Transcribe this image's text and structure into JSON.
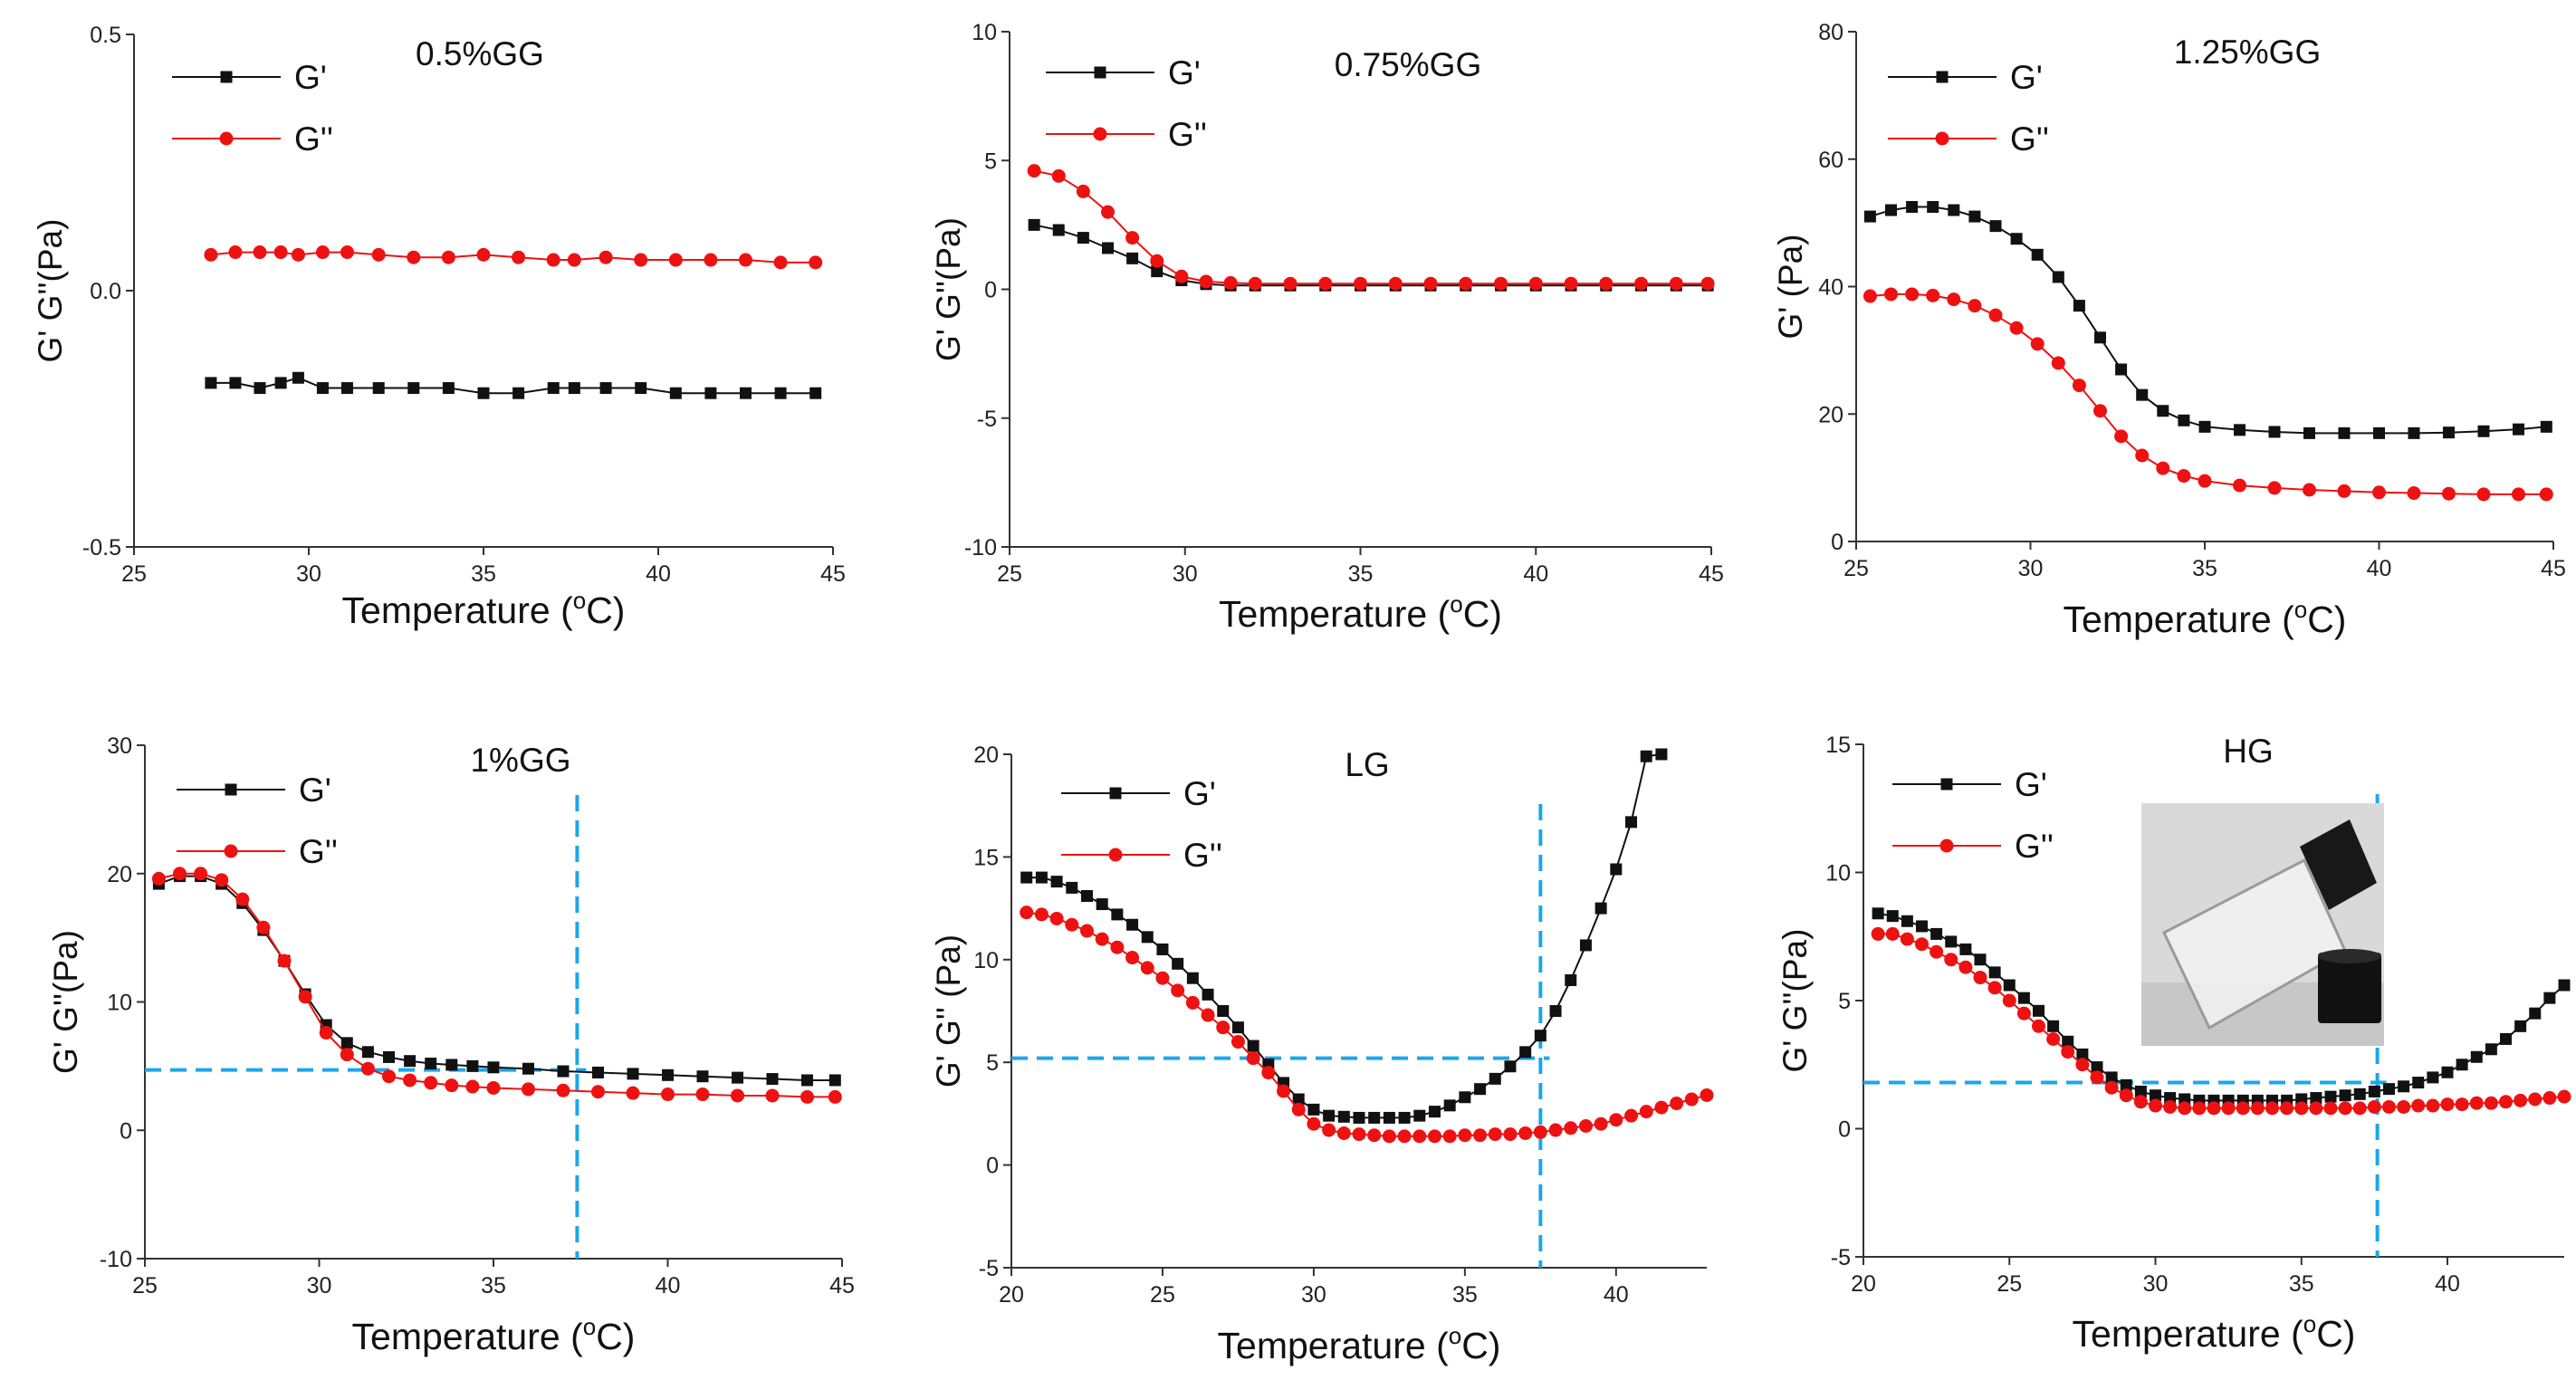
{
  "figure": {
    "x_axis_title": "Temperature",
    "x_axis_unit": "(°C)"
  },
  "chart_data": [
    {
      "type": "line",
      "title": "0.5%GG",
      "xlabel": "Temperature (°C)",
      "ylabel": "G' G''(Pa)",
      "xlim": [
        25,
        45
      ],
      "ylim": [
        -0.5,
        0.5
      ],
      "xticks": [
        25,
        30,
        35,
        40,
        45
      ],
      "xtick_labels": [
        "25",
        "30",
        "35",
        "40",
        "45"
      ],
      "yticks": [
        -0.5,
        0,
        0.5
      ],
      "ytick_labels": [
        "-0.5",
        "0.0",
        "0.5"
      ],
      "legend": [
        "G'",
        "G''"
      ],
      "series": [
        {
          "name": "G'",
          "color": "#111111",
          "marker": "square",
          "x": [
            27.2,
            27.9,
            28.6,
            29.2,
            29.7,
            30.4,
            31.1,
            32.0,
            33.0,
            34.0,
            35.0,
            36.0,
            37.0,
            37.6,
            38.5,
            39.5,
            40.5,
            41.5,
            42.5,
            43.5,
            44.5
          ],
          "y": [
            -0.18,
            -0.18,
            -0.19,
            -0.18,
            -0.17,
            -0.19,
            -0.19,
            -0.19,
            -0.19,
            -0.19,
            -0.2,
            -0.2,
            -0.19,
            -0.19,
            -0.19,
            -0.19,
            -0.2,
            -0.2,
            -0.2,
            -0.2,
            -0.2
          ]
        },
        {
          "name": "G''",
          "color": "#ee1111",
          "marker": "circle",
          "x": [
            27.2,
            27.9,
            28.6,
            29.2,
            29.7,
            30.4,
            31.1,
            32.0,
            33.0,
            34.0,
            35.0,
            36.0,
            37.0,
            37.6,
            38.5,
            39.5,
            40.5,
            41.5,
            42.5,
            43.5,
            44.5
          ],
          "y": [
            0.07,
            0.075,
            0.075,
            0.075,
            0.07,
            0.075,
            0.075,
            0.07,
            0.065,
            0.065,
            0.07,
            0.065,
            0.06,
            0.06,
            0.065,
            0.06,
            0.06,
            0.06,
            0.06,
            0.055,
            0.055
          ]
        }
      ]
    },
    {
      "type": "line",
      "title": "0.75%GG",
      "xlabel": "Temperature (°C)",
      "ylabel": "G' G''(Pa)",
      "xlim": [
        25,
        45
      ],
      "ylim": [
        -10,
        10
      ],
      "xticks": [
        25,
        30,
        35,
        40,
        45
      ],
      "xtick_labels": [
        "25",
        "30",
        "35",
        "40",
        "45"
      ],
      "yticks": [
        -10,
        -5,
        0,
        5,
        10
      ],
      "ytick_labels": [
        "-10",
        "-5",
        "0",
        "5",
        "10"
      ],
      "legend": [
        "G'",
        "G''"
      ],
      "series": [
        {
          "name": "G'",
          "color": "#111111",
          "marker": "square",
          "x": [
            25.7,
            26.4,
            27.1,
            27.8,
            28.5,
            29.2,
            29.9,
            30.6,
            31.3,
            32.0,
            33.0,
            34.0,
            35.0,
            36.0,
            37.0,
            38.0,
            39.0,
            40.0,
            41.0,
            42.0,
            43.0,
            44.0,
            44.9
          ],
          "y": [
            2.5,
            2.3,
            2.0,
            1.6,
            1.2,
            0.7,
            0.35,
            0.2,
            0.15,
            0.15,
            0.15,
            0.15,
            0.15,
            0.15,
            0.15,
            0.15,
            0.15,
            0.15,
            0.15,
            0.15,
            0.15,
            0.15,
            0.15
          ]
        },
        {
          "name": "G''",
          "color": "#ee1111",
          "marker": "circle",
          "x": [
            25.7,
            26.4,
            27.1,
            27.8,
            28.5,
            29.2,
            29.9,
            30.6,
            31.3,
            32.0,
            33.0,
            34.0,
            35.0,
            36.0,
            37.0,
            38.0,
            39.0,
            40.0,
            41.0,
            42.0,
            43.0,
            44.0,
            44.9
          ],
          "y": [
            4.6,
            4.4,
            3.8,
            3.0,
            2.0,
            1.1,
            0.5,
            0.3,
            0.25,
            0.22,
            0.22,
            0.22,
            0.22,
            0.22,
            0.22,
            0.22,
            0.22,
            0.22,
            0.22,
            0.22,
            0.22,
            0.22,
            0.22
          ]
        }
      ]
    },
    {
      "type": "line",
      "title": "1.25%GG",
      "xlabel": "Temperature (°C)",
      "ylabel": "G' (Pa)",
      "xlim": [
        25,
        45
      ],
      "ylim": [
        0,
        80
      ],
      "xticks": [
        25,
        30,
        35,
        40,
        45
      ],
      "xtick_labels": [
        "25",
        "30",
        "35",
        "40",
        "45"
      ],
      "yticks": [
        0,
        20,
        40,
        60,
        80
      ],
      "ytick_labels": [
        "0",
        "20",
        "40",
        "60",
        "80"
      ],
      "legend": [
        "G'",
        "G''"
      ],
      "series": [
        {
          "name": "G'",
          "color": "#111111",
          "marker": "square",
          "x": [
            25.4,
            26.0,
            26.6,
            27.2,
            27.8,
            28.4,
            29.0,
            29.6,
            30.2,
            30.8,
            31.4,
            32.0,
            32.6,
            33.2,
            33.8,
            34.4,
            35.0,
            36.0,
            37.0,
            38.0,
            39.0,
            40.0,
            41.0,
            42.0,
            43.0,
            44.0,
            44.8
          ],
          "y": [
            51,
            52,
            52.5,
            52.5,
            52,
            51,
            49.5,
            47.5,
            45,
            41.5,
            37,
            32,
            27,
            23,
            20.5,
            19,
            18,
            17.5,
            17.2,
            17,
            17,
            17,
            17,
            17.1,
            17.3,
            17.6,
            18
          ]
        },
        {
          "name": "G''",
          "color": "#ee1111",
          "marker": "circle",
          "x": [
            25.4,
            26.0,
            26.6,
            27.2,
            27.8,
            28.4,
            29.0,
            29.6,
            30.2,
            30.8,
            31.4,
            32.0,
            32.6,
            33.2,
            33.8,
            34.4,
            35.0,
            36.0,
            37.0,
            38.0,
            39.0,
            40.0,
            41.0,
            42.0,
            43.0,
            44.0,
            44.8
          ],
          "y": [
            38.5,
            38.8,
            38.8,
            38.6,
            38,
            37,
            35.5,
            33.5,
            31,
            28,
            24.5,
            20.5,
            16.5,
            13.5,
            11.5,
            10.3,
            9.5,
            8.8,
            8.4,
            8.1,
            7.9,
            7.7,
            7.6,
            7.5,
            7.4,
            7.4,
            7.4
          ]
        }
      ]
    },
    {
      "type": "line",
      "title": "1%GG",
      "xlabel": "Temperature (°C)",
      "ylabel": "G' G''(Pa)",
      "xlim": [
        25,
        45
      ],
      "ylim": [
        -10,
        30
      ],
      "xticks": [
        25,
        30,
        35,
        40,
        45
      ],
      "xtick_labels": [
        "25",
        "30",
        "35",
        "40",
        "45"
      ],
      "yticks": [
        -10,
        0,
        10,
        20,
        30
      ],
      "ytick_labels": [
        "-10",
        "0",
        "10",
        "20",
        "30"
      ],
      "legend": [
        "G'",
        "G''"
      ],
      "guide": {
        "x": 37.4,
        "y": 4.7
      },
      "series": [
        {
          "name": "G'",
          "color": "#111111",
          "marker": "square",
          "x": [
            25.4,
            26.0,
            26.6,
            27.2,
            27.8,
            28.4,
            29.0,
            29.6,
            30.2,
            30.8,
            31.4,
            32.0,
            32.6,
            33.2,
            33.8,
            34.4,
            35.0,
            36.0,
            37.0,
            38.0,
            39.0,
            40.0,
            41.0,
            42.0,
            43.0,
            44.0,
            44.8
          ],
          "y": [
            19.2,
            19.8,
            19.8,
            19.2,
            17.7,
            15.6,
            13.2,
            10.6,
            8.2,
            6.8,
            6.1,
            5.7,
            5.4,
            5.2,
            5.1,
            5.0,
            4.9,
            4.8,
            4.6,
            4.5,
            4.4,
            4.3,
            4.2,
            4.1,
            4.0,
            3.9,
            3.9
          ]
        },
        {
          "name": "G''",
          "color": "#ee1111",
          "marker": "circle",
          "x": [
            25.4,
            26.0,
            26.6,
            27.2,
            27.8,
            28.4,
            29.0,
            29.6,
            30.2,
            30.8,
            31.4,
            32.0,
            32.6,
            33.2,
            33.8,
            34.4,
            35.0,
            36.0,
            37.0,
            38.0,
            39.0,
            40.0,
            41.0,
            42.0,
            43.0,
            44.0,
            44.8
          ],
          "y": [
            19.6,
            20.0,
            20.0,
            19.5,
            18.0,
            15.8,
            13.2,
            10.4,
            7.6,
            5.9,
            4.8,
            4.2,
            3.9,
            3.7,
            3.5,
            3.4,
            3.3,
            3.2,
            3.1,
            3.0,
            2.9,
            2.8,
            2.8,
            2.7,
            2.7,
            2.6,
            2.6
          ]
        }
      ]
    },
    {
      "type": "line",
      "title": "LG",
      "xlabel": "Temperature (°C)",
      "ylabel": "G' G'' (Pa)",
      "xlim": [
        20,
        43
      ],
      "ylim": [
        -5,
        20
      ],
      "xticks": [
        20,
        25,
        30,
        35,
        40
      ],
      "xtick_labels": [
        "20",
        "25",
        "30",
        "35",
        "40"
      ],
      "yticks": [
        -5,
        0,
        5,
        10,
        15,
        20
      ],
      "ytick_labels": [
        "-5",
        "0",
        "5",
        "10",
        "15",
        "20"
      ],
      "legend": [
        "G'",
        "G''"
      ],
      "guide": {
        "x": 37.5,
        "y": 5.2
      },
      "series": [
        {
          "name": "G'",
          "color": "#111111",
          "marker": "square",
          "x": [
            20.5,
            21.0,
            21.5,
            22.0,
            22.5,
            23.0,
            23.5,
            24.0,
            24.5,
            25.0,
            25.5,
            26.0,
            26.5,
            27.0,
            27.5,
            28.0,
            28.5,
            29.0,
            29.5,
            30.0,
            30.5,
            31.0,
            31.5,
            32.0,
            32.5,
            33.0,
            33.5,
            34.0,
            34.5,
            35.0,
            35.5,
            36.0,
            36.5,
            37.0,
            37.5,
            38.0,
            38.5,
            39.0,
            39.5,
            40.0,
            40.5,
            41.0,
            41.5
          ],
          "y": [
            14.0,
            14.0,
            13.8,
            13.5,
            13.1,
            12.7,
            12.2,
            11.7,
            11.1,
            10.5,
            9.8,
            9.1,
            8.3,
            7.5,
            6.7,
            5.8,
            4.9,
            4.0,
            3.2,
            2.7,
            2.4,
            2.35,
            2.3,
            2.3,
            2.3,
            2.3,
            2.4,
            2.6,
            2.9,
            3.3,
            3.7,
            4.2,
            4.8,
            5.5,
            6.3,
            7.5,
            9.0,
            10.7,
            12.5,
            14.4,
            16.7,
            19.9,
            20.0
          ]
        },
        {
          "name": "G''",
          "color": "#ee1111",
          "marker": "circle",
          "x": [
            20.5,
            21.0,
            21.5,
            22.0,
            22.5,
            23.0,
            23.5,
            24.0,
            24.5,
            25.0,
            25.5,
            26.0,
            26.5,
            27.0,
            27.5,
            28.0,
            28.5,
            29.0,
            29.5,
            30.0,
            30.5,
            31.0,
            31.5,
            32.0,
            32.5,
            33.0,
            33.5,
            34.0,
            34.5,
            35.0,
            35.5,
            36.0,
            36.5,
            37.0,
            37.5,
            38.0,
            38.5,
            39.0,
            39.5,
            40.0,
            40.5,
            41.0,
            41.5,
            42.0,
            42.5,
            43.0
          ],
          "y": [
            12.3,
            12.2,
            12.0,
            11.7,
            11.4,
            11.0,
            10.6,
            10.1,
            9.6,
            9.1,
            8.5,
            7.9,
            7.3,
            6.7,
            6.0,
            5.2,
            4.5,
            3.6,
            2.7,
            2.0,
            1.7,
            1.55,
            1.5,
            1.45,
            1.4,
            1.4,
            1.4,
            1.4,
            1.4,
            1.45,
            1.45,
            1.5,
            1.5,
            1.55,
            1.6,
            1.7,
            1.8,
            1.9,
            2.0,
            2.2,
            2.4,
            2.6,
            2.8,
            3.0,
            3.2,
            3.4
          ]
        }
      ]
    },
    {
      "type": "line",
      "title": "HG",
      "xlabel": "Temperature (°C)",
      "ylabel": "G' G''(Pa)",
      "xlim": [
        20,
        44
      ],
      "ylim": [
        -5,
        15
      ],
      "xticks": [
        20,
        25,
        30,
        35,
        40
      ],
      "xtick_labels": [
        "20",
        "25",
        "30",
        "35",
        "40"
      ],
      "yticks": [
        -5,
        0,
        5,
        10,
        15
      ],
      "ytick_labels": [
        "-5",
        "0",
        "5",
        "10",
        "15"
      ],
      "legend": [
        "G'",
        "G''"
      ],
      "guide": {
        "x": 37.6,
        "y": 1.8
      },
      "series": [
        {
          "name": "G'",
          "color": "#111111",
          "marker": "square",
          "x": [
            20.5,
            21.0,
            21.5,
            22.0,
            22.5,
            23.0,
            23.5,
            24.0,
            24.5,
            25.0,
            25.5,
            26.0,
            26.5,
            27.0,
            27.5,
            28.0,
            28.5,
            29.0,
            29.5,
            30.0,
            30.5,
            31.0,
            31.5,
            32.0,
            32.5,
            33.0,
            33.5,
            34.0,
            34.5,
            35.0,
            35.5,
            36.0,
            36.5,
            37.0,
            37.5,
            38.0,
            38.5,
            39.0,
            39.5,
            40.0,
            40.5,
            41.0,
            41.5,
            42.0,
            42.5,
            43.0,
            43.5,
            44.0
          ],
          "y": [
            8.4,
            8.3,
            8.1,
            7.9,
            7.6,
            7.3,
            7.0,
            6.6,
            6.1,
            5.6,
            5.1,
            4.6,
            4.0,
            3.4,
            2.9,
            2.4,
            2.0,
            1.7,
            1.45,
            1.3,
            1.2,
            1.15,
            1.1,
            1.1,
            1.1,
            1.1,
            1.1,
            1.1,
            1.1,
            1.15,
            1.2,
            1.25,
            1.3,
            1.35,
            1.45,
            1.55,
            1.65,
            1.8,
            2.0,
            2.2,
            2.5,
            2.8,
            3.1,
            3.5,
            4.0,
            4.5,
            5.1,
            5.6
          ]
        },
        {
          "name": "G''",
          "color": "#ee1111",
          "marker": "circle",
          "x": [
            20.5,
            21.0,
            21.5,
            22.0,
            22.5,
            23.0,
            23.5,
            24.0,
            24.5,
            25.0,
            25.5,
            26.0,
            26.5,
            27.0,
            27.5,
            28.0,
            28.5,
            29.0,
            29.5,
            30.0,
            30.5,
            31.0,
            31.5,
            32.0,
            32.5,
            33.0,
            33.5,
            34.0,
            34.5,
            35.0,
            35.5,
            36.0,
            36.5,
            37.0,
            37.5,
            38.0,
            38.5,
            39.0,
            39.5,
            40.0,
            40.5,
            41.0,
            41.5,
            42.0,
            42.5,
            43.0,
            43.5,
            44.0
          ],
          "y": [
            7.6,
            7.6,
            7.4,
            7.2,
            6.9,
            6.6,
            6.3,
            5.9,
            5.5,
            5.0,
            4.5,
            4.0,
            3.5,
            3.0,
            2.5,
            2.0,
            1.6,
            1.3,
            1.05,
            0.9,
            0.85,
            0.8,
            0.8,
            0.8,
            0.8,
            0.8,
            0.8,
            0.8,
            0.8,
            0.8,
            0.8,
            0.8,
            0.8,
            0.8,
            0.85,
            0.85,
            0.85,
            0.9,
            0.9,
            0.95,
            0.95,
            1.0,
            1.0,
            1.05,
            1.1,
            1.15,
            1.2,
            1.25
          ]
        }
      ]
    }
  ]
}
